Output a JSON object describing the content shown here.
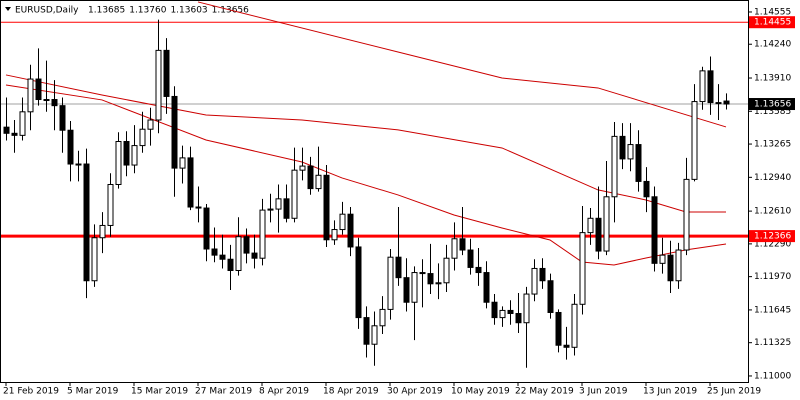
{
  "chart_data": {
    "type": "candlestick",
    "title": "EURUSD,Daily",
    "header_values": [
      "1.13685",
      "1.13760",
      "1.13603",
      "1.13656"
    ],
    "categories": [
      "21 Feb 2019",
      null,
      null,
      null,
      null,
      null,
      null,
      null,
      "5 Mar 2019",
      null,
      null,
      null,
      null,
      null,
      null,
      null,
      "15 Mar 2019",
      null,
      null,
      null,
      null,
      null,
      null,
      null,
      "27 Mar 2019",
      null,
      null,
      null,
      null,
      null,
      null,
      null,
      "8 Apr 2019",
      null,
      null,
      null,
      null,
      null,
      null,
      null,
      "18 Apr 2019",
      null,
      null,
      null,
      null,
      null,
      null,
      null,
      "30 Apr 2019",
      null,
      null,
      null,
      null,
      null,
      null,
      null,
      "10 May 2019",
      null,
      null,
      null,
      null,
      null,
      null,
      null,
      "22 May 2019",
      null,
      null,
      null,
      null,
      null,
      null,
      null,
      "3 Jun 2019",
      null,
      null,
      null,
      null,
      null,
      null,
      null,
      "13 Jun 2019",
      null,
      null,
      null,
      null,
      null,
      null,
      null,
      "25 Jun 2019",
      null,
      null
    ],
    "open": [
      1.1343,
      1.1337,
      1.1335,
      1.1358,
      1.139,
      1.137,
      1.137,
      1.1364,
      1.134,
      1.1307,
      1.1307,
      1.1193,
      1.1235,
      1.1247,
      1.1287,
      1.1329,
      1.1306,
      1.1325,
      1.1341,
      1.135,
      1.1418,
      1.1373,
      1.1303,
      1.1313,
      1.1265,
      1.1264,
      1.1224,
      1.1218,
      1.1214,
      1.1203,
      1.1236,
      1.122,
      1.1215,
      1.1262,
      1.1263,
      1.1273,
      1.1254,
      1.1301,
      1.1305,
      1.1283,
      1.1296,
      1.1233,
      1.1243,
      1.1258,
      1.1226,
      1.1157,
      1.1131,
      1.1149,
      1.1165,
      1.1216,
      1.1196,
      1.1172,
      1.1201,
      1.12,
      1.119,
      1.1191,
      1.1215,
      1.1234,
      1.1223,
      1.1206,
      1.1201,
      1.1172,
      1.1157,
      1.1164,
      1.1161,
      1.1152,
      1.118,
      1.1205,
      1.1193,
      1.1162,
      1.113,
      1.1128,
      1.117,
      1.124,
      1.1254,
      1.1222,
      1.1275,
      1.1334,
      1.1312,
      1.1326,
      1.129,
      1.1275,
      1.121,
      1.1218,
      1.1193,
      1.1223,
      1.1292,
      1.1368,
      1.1398,
      1.1367,
      1.13685
    ],
    "high": [
      1.1372,
      1.135,
      1.1372,
      1.1404,
      1.142,
      1.1408,
      1.1389,
      1.1372,
      1.1349,
      1.132,
      1.1322,
      1.1248,
      1.126,
      1.1298,
      1.1338,
      1.1339,
      1.1345,
      1.1358,
      1.1362,
      1.1448,
      1.143,
      1.1383,
      1.1325,
      1.1324,
      1.1285,
      1.1268,
      1.1245,
      1.1238,
      1.1228,
      1.1255,
      1.1244,
      1.1238,
      1.1273,
      1.1278,
      1.1287,
      1.1287,
      1.1323,
      1.1323,
      1.1314,
      1.1324,
      1.1306,
      1.1252,
      1.127,
      1.1265,
      1.1235,
      1.1168,
      1.1163,
      1.1178,
      1.1224,
      1.1265,
      1.1215,
      1.1207,
      1.1214,
      1.1229,
      1.121,
      1.1228,
      1.125,
      1.1265,
      1.1234,
      1.1225,
      1.1212,
      1.118,
      1.1168,
      1.1174,
      1.1181,
      1.1187,
      1.1214,
      1.1215,
      1.12,
      1.1165,
      1.1148,
      1.118,
      1.1266,
      1.1264,
      1.1285,
      1.131,
      1.1348,
      1.1347,
      1.1347,
      1.134,
      1.1304,
      1.1285,
      1.1235,
      1.1232,
      1.123,
      1.1313,
      1.1385,
      1.1402,
      1.1412,
      1.1385,
      1.1376
    ],
    "low": [
      1.133,
      1.1318,
      1.133,
      1.134,
      1.1364,
      1.1358,
      1.134,
      1.1318,
      1.129,
      1.129,
      1.1176,
      1.1187,
      1.122,
      1.1236,
      1.1283,
      1.1295,
      1.1298,
      1.1318,
      1.1325,
      1.1337,
      1.1356,
      1.1275,
      1.1288,
      1.1262,
      1.125,
      1.1212,
      1.1211,
      1.1205,
      1.1184,
      1.1198,
      1.121,
      1.1205,
      1.1208,
      1.125,
      1.124,
      1.125,
      1.125,
      1.1291,
      1.1277,
      1.128,
      1.1226,
      1.1228,
      1.1238,
      1.1217,
      1.1146,
      1.1118,
      1.111,
      1.1141,
      1.1155,
      1.1188,
      1.1163,
      1.1135,
      1.1167,
      1.118,
      1.1175,
      1.1182,
      1.1203,
      1.1218,
      1.1199,
      1.1188,
      1.1166,
      1.115,
      1.1148,
      1.115,
      1.1142,
      1.1108,
      1.1173,
      1.1185,
      1.1156,
      1.1123,
      1.1116,
      1.112,
      1.116,
      1.1228,
      1.1214,
      1.1218,
      1.125,
      1.1302,
      1.13,
      1.128,
      1.126,
      1.1202,
      1.12,
      1.1181,
      1.1185,
      1.1218,
      1.129,
      1.136,
      1.1355,
      1.135,
      1.13603
    ],
    "close": [
      1.1337,
      1.1335,
      1.1358,
      1.139,
      1.137,
      1.137,
      1.1364,
      1.134,
      1.1307,
      1.1307,
      1.1193,
      1.1235,
      1.1247,
      1.1287,
      1.1329,
      1.1306,
      1.1325,
      1.1341,
      1.135,
      1.1418,
      1.1373,
      1.1303,
      1.1313,
      1.1265,
      1.1264,
      1.1224,
      1.1218,
      1.1214,
      1.1203,
      1.1236,
      1.122,
      1.1215,
      1.1262,
      1.1263,
      1.1273,
      1.1254,
      1.1301,
      1.1305,
      1.1283,
      1.1296,
      1.1233,
      1.1243,
      1.1258,
      1.1226,
      1.1157,
      1.1131,
      1.1149,
      1.1165,
      1.1216,
      1.1196,
      1.1172,
      1.1201,
      1.12,
      1.119,
      1.1191,
      1.1215,
      1.1234,
      1.1223,
      1.1206,
      1.1201,
      1.1172,
      1.1157,
      1.1164,
      1.1161,
      1.1152,
      1.118,
      1.1205,
      1.1193,
      1.1162,
      1.113,
      1.1128,
      1.117,
      1.124,
      1.1254,
      1.1222,
      1.1275,
      1.1334,
      1.1312,
      1.1326,
      1.129,
      1.1275,
      1.121,
      1.1218,
      1.1193,
      1.1223,
      1.1292,
      1.1368,
      1.1398,
      1.1367,
      1.1367,
      1.13656
    ],
    "up_color": "#ffffff",
    "down_color": "#000000",
    "wick_color": "#000000",
    "lines": [
      {
        "color": "#cc0000",
        "x": [
          24,
          49,
          62,
          74,
          90
        ],
        "values": [
          1.14653,
          1.14164,
          1.1391,
          1.13813,
          1.13432
        ]
      },
      {
        "color": "#cc0000",
        "x": [
          0,
          12,
          25,
          37,
          49,
          62,
          74,
          80,
          85,
          90
        ],
        "values": [
          1.1394,
          1.13744,
          1.13549,
          1.135,
          1.13403,
          1.13227,
          1.12817,
          1.12719,
          1.12602,
          1.12602
        ]
      },
      {
        "color": "#cc0000",
        "x": [
          0,
          12,
          25,
          37,
          42,
          49,
          56,
          62,
          68,
          72,
          76,
          80,
          85,
          90
        ],
        "values": [
          1.13842,
          1.13696,
          1.13305,
          1.1309,
          1.12934,
          1.12768,
          1.12572,
          1.12445,
          1.12328,
          1.12113,
          1.12084,
          1.12152,
          1.12231,
          1.12289
        ]
      }
    ],
    "levels": [
      {
        "value": 1.14455,
        "color": "#ff0000",
        "width": 1
      },
      {
        "value": 1.12366,
        "color": "#ff0000",
        "width": 3
      }
    ],
    "current_price": {
      "value": 1.13656,
      "color": "#000000",
      "line_color": "#a0a0a0"
    },
    "ylim": [
      1.10941,
      1.14672
    ],
    "yticks": [
      1.14555,
      {
        "value": 1.1424,
        "label": "1.14240"
      },
      {
        "value": 1.1391,
        "label": "1.13910"
      },
      1.13585,
      1.13265,
      {
        "value": 1.1294,
        "label": "1.12940"
      },
      {
        "value": 1.1261,
        "label": "1.12610"
      },
      {
        "value": 1.1229,
        "label": "1.12290"
      },
      {
        "value": 1.1197,
        "label": "1.11970"
      },
      1.11645,
      1.11325,
      {
        "value": 1.11,
        "label": "1.11000"
      }
    ],
    "grid": false
  }
}
